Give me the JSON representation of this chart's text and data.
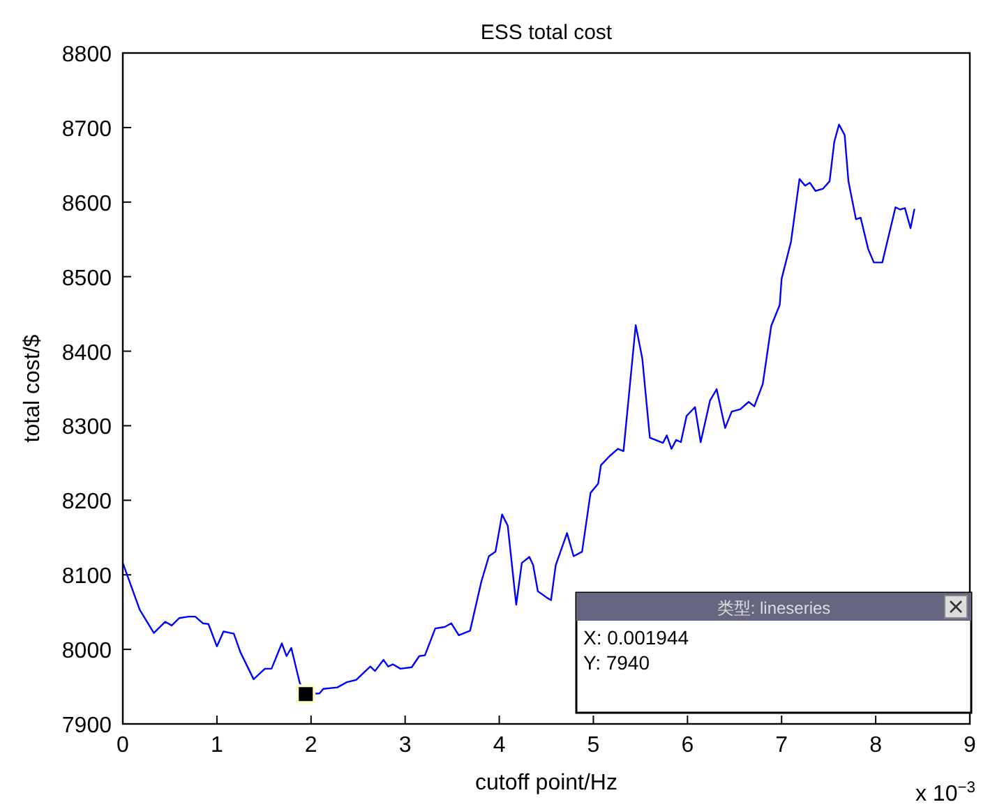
{
  "chart_data": {
    "type": "line",
    "title": "ESS total cost",
    "xlabel": "cutoff point/Hz",
    "ylabel": "total cost/$",
    "xlim": [
      0,
      9
    ],
    "xticks": [
      0,
      1,
      2,
      3,
      4,
      5,
      6,
      7,
      8,
      9
    ],
    "ylim": [
      7900,
      8800
    ],
    "yticks": [
      7900,
      8000,
      8100,
      8200,
      8300,
      8400,
      8500,
      8600,
      8700,
      8800
    ],
    "series": [
      {
        "color": "#0000ff",
        "x": [
          0.0,
          0.18,
          0.33,
          0.45,
          0.52,
          0.6,
          0.7,
          0.77,
          0.85,
          0.91,
          1.0,
          1.07,
          1.18,
          1.25,
          1.39,
          1.51,
          1.58,
          1.69,
          1.74,
          1.79,
          1.88,
          1.944,
          2.09,
          2.13,
          2.28,
          2.38,
          2.48,
          2.63,
          2.68,
          2.77,
          2.82,
          2.87,
          2.95,
          3.07,
          3.15,
          3.21,
          3.32,
          3.42,
          3.49,
          3.57,
          3.69,
          3.81,
          3.89,
          3.96,
          4.03,
          4.09,
          4.18,
          4.24,
          4.32,
          4.36,
          4.41,
          4.51,
          4.55,
          4.6,
          4.72,
          4.79,
          4.88,
          4.97,
          5.05,
          5.08,
          5.17,
          5.26,
          5.32,
          5.45,
          5.52,
          5.6,
          5.74,
          5.78,
          5.83,
          5.88,
          5.93,
          5.99,
          6.08,
          6.14,
          6.24,
          6.31,
          6.4,
          6.47,
          6.56,
          6.65,
          6.71,
          6.8,
          6.89,
          6.98,
          7.0,
          7.1,
          7.19,
          7.25,
          7.3,
          7.36,
          7.44,
          7.51,
          7.56,
          7.61,
          7.67,
          7.71,
          7.79,
          7.84,
          7.92,
          7.98,
          8.07,
          8.21,
          8.26,
          8.31,
          8.37,
          8.41
        ],
        "values": [
          8116,
          8053,
          8022,
          8037,
          8032,
          8042,
          8044,
          8044,
          8035,
          8034,
          8004,
          8024,
          8021,
          7996,
          7960,
          7974,
          7974,
          8008,
          7991,
          8002,
          7955,
          7940,
          7941,
          7947,
          7949,
          7956,
          7959,
          7977,
          7971,
          7986,
          7977,
          7980,
          7974,
          7976,
          7991,
          7992,
          8028,
          8030,
          8035,
          8019,
          8025,
          8091,
          8125,
          8131,
          8181,
          8166,
          8060,
          8116,
          8124,
          8113,
          8078,
          8069,
          8066,
          8113,
          8156,
          8125,
          8131,
          8210,
          8222,
          8247,
          8259,
          8269,
          8266,
          8435,
          8390,
          8284,
          8277,
          8287,
          8269,
          8281,
          8278,
          8313,
          8325,
          8278,
          8334,
          8349,
          8297,
          8319,
          8322,
          8332,
          8326,
          8356,
          8434,
          8462,
          8497,
          8547,
          8631,
          8622,
          8626,
          8615,
          8618,
          8628,
          8681,
          8704,
          8690,
          8628,
          8577,
          8579,
          8537,
          8519,
          8519,
          8593,
          8590,
          8592,
          8565,
          8590
        ]
      },
      {
        "type": "scatter",
        "marker": "square",
        "color": "#000000",
        "x": [
          1.944
        ],
        "values": [
          7940
        ]
      }
    ],
    "annotations": [
      "类型: lineseries",
      "X: 0.001944",
      "Y: 7940",
      "x 10$^{−3}$"
    ]
  }
}
